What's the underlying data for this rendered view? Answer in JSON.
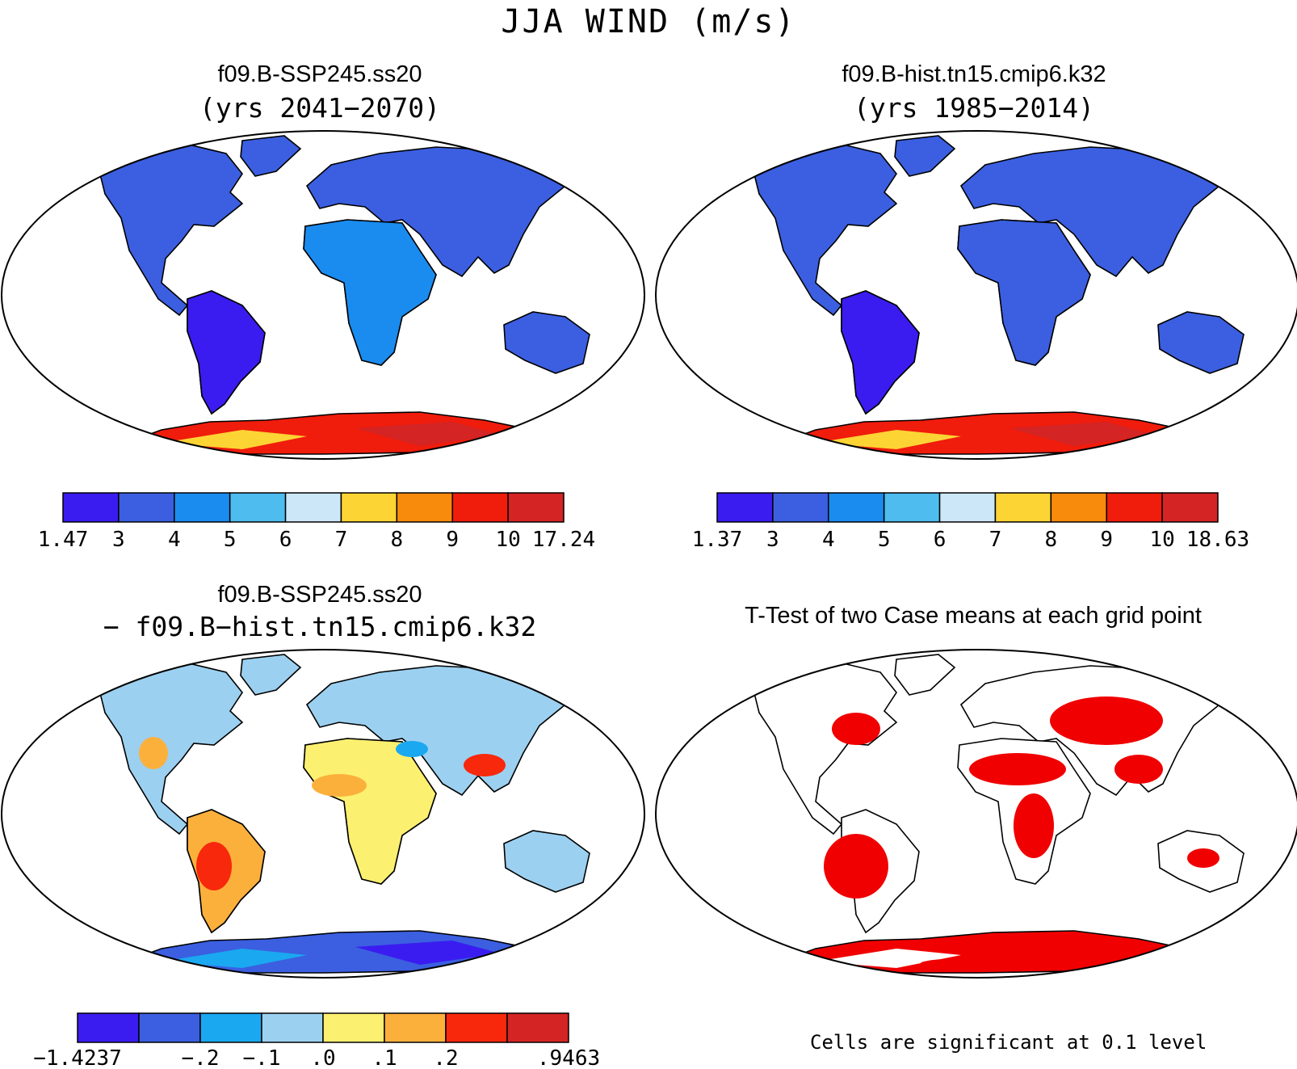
{
  "figure": {
    "title": "JJA WIND (m/s)",
    "panels": [
      {
        "id": "case1",
        "title": "f09.B-SSP245.ss20",
        "subtitle": "(yrs 2041−2070)",
        "colorbar": {
          "labels": [
            "1.47",
            "3",
            "4",
            "5",
            "6",
            "7",
            "8",
            "9",
            "10",
            "17.24"
          ],
          "colors": [
            "#3a1cf0",
            "#3b5fe0",
            "#1a8cf0",
            "#4fbcf0",
            "#cce8f8",
            "#fcd434",
            "#f88a0c",
            "#f01c0c",
            "#d42424"
          ]
        }
      },
      {
        "id": "case2",
        "title": "f09.B-hist.tn15.cmip6.k32",
        "subtitle": "(yrs 1985−2014)",
        "colorbar": {
          "labels": [
            "1.37",
            "3",
            "4",
            "5",
            "6",
            "7",
            "8",
            "9",
            "10",
            "18.63"
          ],
          "colors": [
            "#3a1cf0",
            "#3b5fe0",
            "#1a8cf0",
            "#4fbcf0",
            "#cce8f8",
            "#fcd434",
            "#f88a0c",
            "#f01c0c",
            "#d42424"
          ]
        }
      },
      {
        "id": "difference",
        "title": "f09.B-SSP245.ss20",
        "subtitle": "− f09.B−hist.tn15.cmip6.k32",
        "colorbar": {
          "labels": [
            "−1.4237",
            "",
            "−.2",
            "−.1",
            ".0",
            ".1",
            ".2",
            "",
            ".9463"
          ],
          "colors": [
            "#3a1cf0",
            "#3b5fe0",
            "#1aa8f0",
            "#9cd0f0",
            "#fcf070",
            "#fcb03c",
            "#f8280c",
            "#d42424"
          ]
        }
      },
      {
        "id": "ttest",
        "title": "T-Test of two Case means at each grid point",
        "note": "Cells are significant at 0.1 level",
        "significance_color": "#f00000"
      }
    ]
  }
}
